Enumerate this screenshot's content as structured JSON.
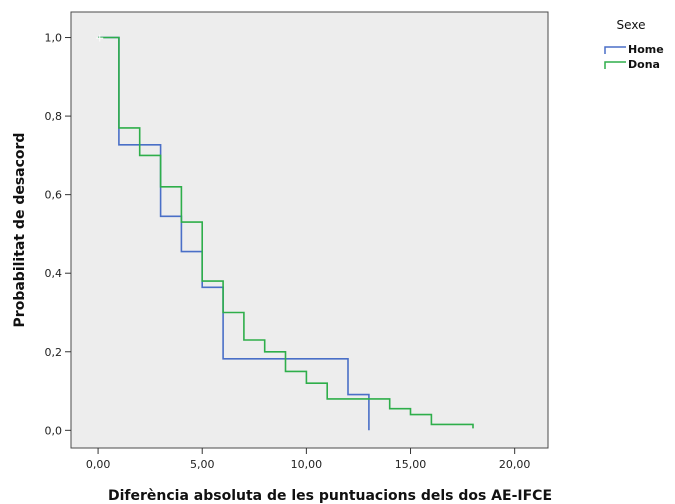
{
  "chart_data": {
    "type": "line",
    "step": true,
    "xlabel": "Diferència absoluta de les puntuacions dels dos AE-IFCE",
    "ylabel": "Probabilitat de desacord",
    "xlim": [
      -1.3,
      21.6
    ],
    "ylim": [
      -0.045,
      1.065
    ],
    "x_ticks": [
      0,
      5,
      10,
      15,
      20
    ],
    "x_tick_labels": [
      "0,00",
      "5,00",
      "10,00",
      "15,00",
      "20,00"
    ],
    "y_ticks": [
      0,
      0.2,
      0.4,
      0.6,
      0.8,
      1.0
    ],
    "y_tick_labels": [
      "0,0",
      "0,2",
      "0,4",
      "0,6",
      "0,8",
      "1,0"
    ],
    "grid": false,
    "legend": {
      "title": "Sexe",
      "position": "top-right"
    },
    "series": [
      {
        "name": "Home",
        "color": "#4a6fc7",
        "points": [
          [
            0,
            1.0
          ],
          [
            1,
            1.0
          ],
          [
            1,
            0.727
          ],
          [
            3,
            0.727
          ],
          [
            3,
            0.545
          ],
          [
            4,
            0.545
          ],
          [
            4,
            0.455
          ],
          [
            5,
            0.455
          ],
          [
            5,
            0.364
          ],
          [
            6,
            0.364
          ],
          [
            6,
            0.182
          ],
          [
            12,
            0.182
          ],
          [
            12,
            0.091
          ],
          [
            13,
            0.091
          ],
          [
            13,
            0.0
          ]
        ]
      },
      {
        "name": "Dona",
        "color": "#2eae4a",
        "points": [
          [
            0,
            1.0
          ],
          [
            1,
            1.0
          ],
          [
            1,
            0.77
          ],
          [
            2,
            0.77
          ],
          [
            2,
            0.7
          ],
          [
            3,
            0.7
          ],
          [
            3,
            0.62
          ],
          [
            4,
            0.62
          ],
          [
            4,
            0.53
          ],
          [
            5,
            0.53
          ],
          [
            5,
            0.38
          ],
          [
            6,
            0.38
          ],
          [
            6,
            0.3
          ],
          [
            7,
            0.3
          ],
          [
            7,
            0.23
          ],
          [
            8,
            0.23
          ],
          [
            8,
            0.2
          ],
          [
            9,
            0.2
          ],
          [
            9,
            0.15
          ],
          [
            10,
            0.15
          ],
          [
            10,
            0.12
          ],
          [
            11,
            0.12
          ],
          [
            11,
            0.08
          ],
          [
            14,
            0.08
          ],
          [
            14,
            0.055
          ],
          [
            15,
            0.055
          ],
          [
            15,
            0.04
          ],
          [
            16,
            0.04
          ],
          [
            16,
            0.015
          ],
          [
            18,
            0.015
          ],
          [
            18,
            0.005
          ]
        ]
      }
    ]
  }
}
